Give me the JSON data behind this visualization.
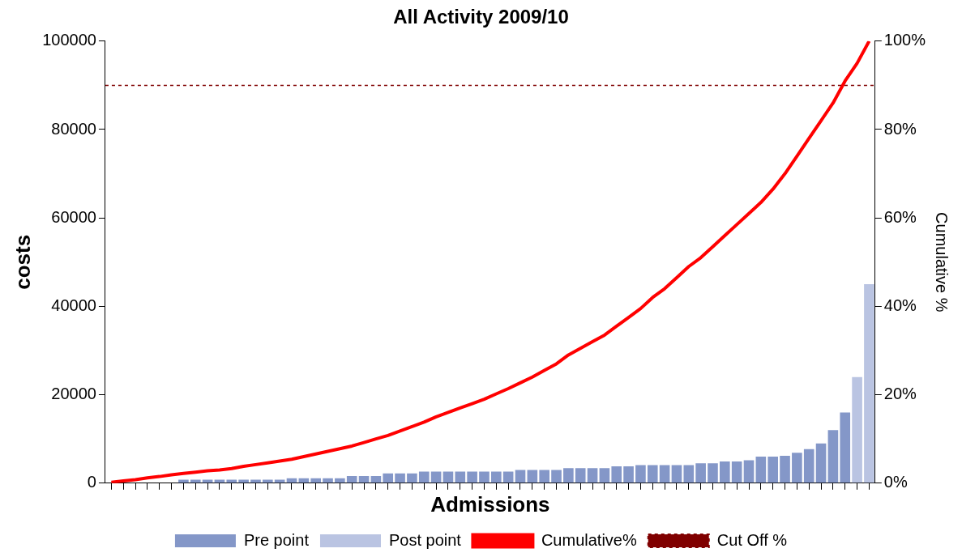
{
  "chart_data": {
    "type": "bar",
    "title": "All Activity 2009/10",
    "xlabel": "Admissions",
    "ylabel": "costs",
    "y2label": "Cumulative %",
    "categories": [
      null,
      null,
      null,
      null,
      null,
      null,
      null,
      null,
      null,
      null,
      null,
      null,
      null,
      null,
      null,
      null,
      null,
      null,
      null,
      null,
      null,
      null,
      null,
      null,
      null,
      null,
      null,
      null,
      null,
      null,
      null,
      null,
      null,
      null,
      null,
      null,
      null,
      null,
      null,
      null,
      null,
      null,
      null,
      null,
      null,
      null,
      null,
      null,
      null,
      null,
      null,
      null,
      null,
      null,
      null,
      null,
      null,
      null,
      null,
      null,
      null,
      null,
      null,
      null
    ],
    "series": [
      {
        "name": "Pre point",
        "color": "#8497c8",
        "values": [
          null,
          null,
          null,
          null,
          null,
          null,
          800,
          800,
          800,
          800,
          800,
          800,
          800,
          800,
          800,
          1100,
          1100,
          1100,
          1100,
          1100,
          1600,
          1600,
          1600,
          2200,
          2200,
          2200,
          2600,
          2600,
          2600,
          2600,
          2600,
          2600,
          2600,
          2600,
          3000,
          3000,
          3000,
          3000,
          3400,
          3400,
          3400,
          3400,
          3800,
          3800,
          4100,
          4100,
          4100,
          4100,
          4100,
          4500,
          4500,
          4900,
          4900,
          5200,
          6000,
          6000,
          6200,
          6900,
          7700,
          9000,
          12000,
          16000,
          null,
          null
        ]
      },
      {
        "name": "Post point",
        "color": "#bac4e2",
        "values": [
          null,
          null,
          null,
          null,
          null,
          null,
          null,
          null,
          null,
          null,
          null,
          null,
          null,
          null,
          null,
          null,
          null,
          null,
          null,
          null,
          null,
          null,
          null,
          null,
          null,
          null,
          null,
          null,
          null,
          null,
          null,
          null,
          null,
          null,
          null,
          null,
          null,
          null,
          null,
          null,
          null,
          null,
          null,
          null,
          null,
          null,
          null,
          null,
          null,
          null,
          null,
          null,
          null,
          null,
          null,
          null,
          null,
          null,
          null,
          null,
          null,
          null,
          24000,
          45000
        ]
      },
      {
        "name": "Cumulative%",
        "type": "line",
        "axis": "y2",
        "color": "#ff0000",
        "values": [
          0.2,
          0.5,
          0.8,
          1.2,
          1.5,
          1.9,
          2.2,
          2.5,
          2.8,
          3,
          3.3,
          3.8,
          4.2,
          4.6,
          5,
          5.4,
          6,
          6.6,
          7.2,
          7.8,
          8.4,
          9.2,
          10,
          10.8,
          11.8,
          12.8,
          13.8,
          15,
          16,
          17,
          18,
          19,
          20.2,
          21.4,
          22.7,
          24,
          25.5,
          27,
          29,
          30.5,
          32,
          33.5,
          35.5,
          37.5,
          39.5,
          42,
          44,
          46.5,
          49,
          51,
          53.5,
          56,
          58.5,
          61,
          63.5,
          66.5,
          70,
          74,
          78,
          82,
          86,
          91,
          95,
          100
        ]
      }
    ],
    "ylim": [
      0,
      100000
    ],
    "yticks": [
      0,
      20000,
      40000,
      60000,
      80000,
      100000
    ],
    "y2lim": [
      0,
      100
    ],
    "y2ticks": [
      {
        "value": 0,
        "label": "0%"
      },
      {
        "value": 20,
        "label": "20%"
      },
      {
        "value": 40,
        "label": "40%"
      },
      {
        "value": 60,
        "label": "60%"
      },
      {
        "value": 80,
        "label": "80%"
      },
      {
        "value": 100,
        "label": "100%"
      }
    ],
    "ref_lines": [
      {
        "axis": "y2",
        "value": 90,
        "label": "Cut Off %",
        "color": "#800000",
        "line_style": "dashed"
      }
    ],
    "legend": "bottom",
    "marker": "none",
    "grid": false
  }
}
